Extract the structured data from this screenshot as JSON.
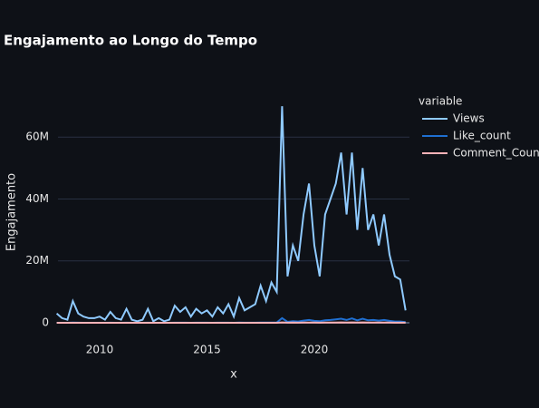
{
  "chart_data": {
    "type": "line",
    "title": "Engajamento ao Longo do Tempo",
    "x_label": "x",
    "y_label": "Engajamento",
    "legend_title": "variable",
    "legend": "right",
    "grid": true,
    "x": [
      2008.0,
      2008.25,
      2008.5,
      2008.75,
      2009.0,
      2009.25,
      2009.5,
      2009.75,
      2010.0,
      2010.25,
      2010.5,
      2010.75,
      2011.0,
      2011.25,
      2011.5,
      2011.75,
      2012.0,
      2012.25,
      2012.5,
      2012.75,
      2013.0,
      2013.25,
      2013.5,
      2013.75,
      2014.0,
      2014.25,
      2014.5,
      2014.75,
      2015.0,
      2015.25,
      2015.5,
      2015.75,
      2016.0,
      2016.25,
      2016.5,
      2016.75,
      2017.0,
      2017.25,
      2017.5,
      2017.75,
      2018.0,
      2018.25,
      2018.5,
      2018.75,
      2019.0,
      2019.25,
      2019.5,
      2019.75,
      2020.0,
      2020.25,
      2020.5,
      2020.75,
      2021.0,
      2021.25,
      2021.5,
      2021.75,
      2022.0,
      2022.25,
      2022.5,
      2022.75,
      2023.0,
      2023.25,
      2023.5,
      2023.75,
      2024.0,
      2024.25
    ],
    "series": [
      {
        "name": "Views",
        "color": "#8fcaff",
        "values": [
          3000000,
          1500000,
          1000000,
          7000000,
          3000000,
          2000000,
          1500000,
          1500000,
          2000000,
          1000000,
          3500000,
          1500000,
          1000000,
          4500000,
          1000000,
          500000,
          1000000,
          4500000,
          500000,
          1500000,
          500000,
          1000000,
          5500000,
          3500000,
          5000000,
          2000000,
          4500000,
          3000000,
          4000000,
          2000000,
          5000000,
          3000000,
          6000000,
          2000000,
          8000000,
          4000000,
          5000000,
          6000000,
          12000000,
          7000000,
          13000000,
          10000000,
          70000000,
          15000000,
          25000000,
          20000000,
          35000000,
          45000000,
          25000000,
          15000000,
          35000000,
          40000000,
          45000000,
          55000000,
          35000000,
          55000000,
          30000000,
          50000000,
          30000000,
          35000000,
          25000000,
          35000000,
          22000000,
          15000000,
          14000000,
          4000000
        ]
      },
      {
        "name": "Like_count",
        "color": "#1f6fd1",
        "values": [
          10000,
          10000,
          10000,
          50000,
          20000,
          10000,
          10000,
          10000,
          10000,
          10000,
          20000,
          10000,
          10000,
          30000,
          10000,
          10000,
          10000,
          30000,
          10000,
          10000,
          10000,
          10000,
          40000,
          20000,
          30000,
          10000,
          30000,
          20000,
          30000,
          10000,
          30000,
          20000,
          40000,
          10000,
          50000,
          30000,
          30000,
          40000,
          80000,
          50000,
          90000,
          70000,
          1500000,
          300000,
          500000,
          400000,
          700000,
          900000,
          600000,
          500000,
          800000,
          900000,
          1100000,
          1300000,
          900000,
          1400000,
          800000,
          1300000,
          800000,
          900000,
          700000,
          900000,
          600000,
          400000,
          400000,
          200000
        ]
      },
      {
        "name": "Comment_Count",
        "color": "#ffb3b8",
        "values": [
          1000,
          1000,
          1000,
          5000,
          2000,
          1000,
          1000,
          1000,
          1000,
          1000,
          2000,
          1000,
          1000,
          3000,
          1000,
          1000,
          1000,
          3000,
          1000,
          1000,
          1000,
          1000,
          4000,
          2000,
          3000,
          1000,
          3000,
          2000,
          3000,
          1000,
          3000,
          2000,
          4000,
          1000,
          5000,
          3000,
          3000,
          4000,
          8000,
          5000,
          9000,
          7000,
          100000,
          30000,
          50000,
          40000,
          60000,
          80000,
          50000,
          40000,
          70000,
          80000,
          90000,
          100000,
          80000,
          110000,
          70000,
          100000,
          70000,
          80000,
          60000,
          80000,
          50000,
          40000,
          40000,
          20000
        ]
      }
    ],
    "xlim": [
      2008.06,
      2024.43
    ],
    "xticks": [
      2010,
      2015,
      2020
    ],
    "ylim": [
      -1000000,
      75000000
    ],
    "yticks": [
      0,
      {
        "value": 20000000,
        "label": "20M"
      },
      {
        "value": 40000000,
        "label": "40M"
      },
      {
        "value": 60000000,
        "label": "60M"
      }
    ]
  }
}
